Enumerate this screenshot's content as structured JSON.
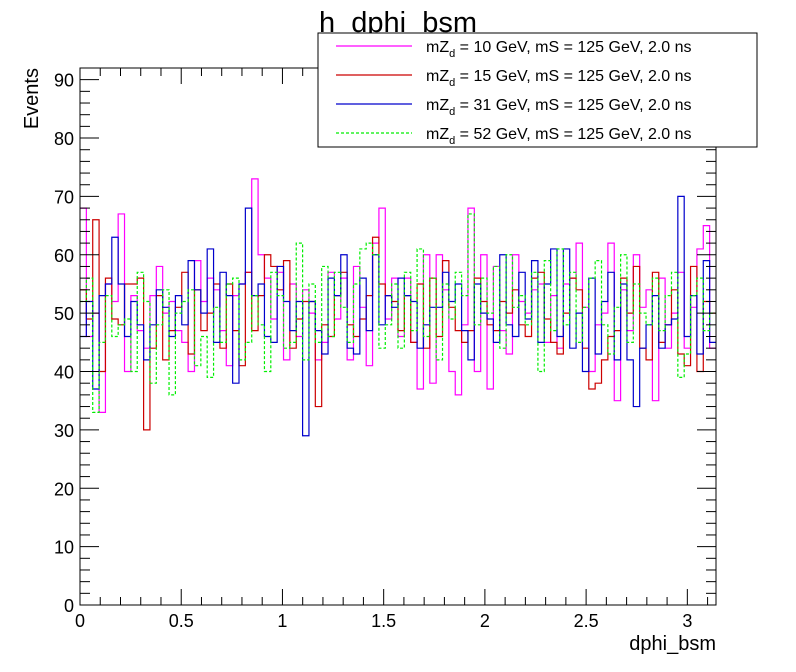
{
  "chart_data": {
    "type": "line",
    "style": "step-histogram",
    "title": "h_dphi_bsm",
    "xlabel": "dphi_bsm",
    "ylabel": "Events",
    "xlim": [
      0,
      3.1416
    ],
    "ylim": [
      0,
      92
    ],
    "x_ticks": [
      "0",
      "0.5",
      "1",
      "1.5",
      "2",
      "2.5",
      "3"
    ],
    "x_tick_values": [
      0,
      0.5,
      1,
      1.5,
      2,
      2.5,
      3
    ],
    "y_ticks": [
      "0",
      "10",
      "20",
      "30",
      "40",
      "50",
      "60",
      "70",
      "80",
      "90"
    ],
    "y_tick_values": [
      0,
      10,
      20,
      30,
      40,
      50,
      60,
      70,
      80,
      90
    ],
    "grid": false,
    "legend_position": "top-right",
    "bins": 100,
    "series": [
      {
        "name": "mZ_d = 10 GeV, mS = 125 GeV, 2.0 ns",
        "legend_prefix": "mZ",
        "legend_sub": "d",
        "legend_rest": " = 10 GeV, mS = 125 GeV, 2.0 ns",
        "color": "#ff00ff",
        "dashed": false,
        "values": [
          68,
          46,
          50,
          33,
          55,
          52,
          67,
          40,
          53,
          47,
          44,
          53,
          58,
          50,
          52,
          47,
          45,
          40,
          59,
          52,
          56,
          54,
          47,
          41,
          53,
          55,
          57,
          73,
          60,
          56,
          49,
          57,
          42,
          55,
          46,
          54,
          50,
          42,
          45,
          57,
          49,
          56,
          42,
          58,
          51,
          41,
          62,
          68,
          49,
          56,
          46,
          56,
          45,
          37,
          60,
          38,
          60,
          54,
          40,
          36,
          48,
          68,
          40,
          60,
          37,
          58,
          47,
          43,
          60,
          52,
          50,
          54,
          55,
          45,
          53,
          44,
          55,
          56,
          62,
          51,
          40,
          48,
          50,
          62,
          35,
          54,
          47,
          60,
          51,
          54,
          35,
          56,
          44,
          50,
          57,
          44,
          51,
          61,
          65,
          44
        ]
      },
      {
        "name": "mZ_d = 15 GeV, mS = 125 GeV, 2.0 ns",
        "legend_prefix": "mZ",
        "legend_sub": "d",
        "legend_rest": " = 15 GeV, mS = 125 GeV, 2.0 ns",
        "color": "#cc0000",
        "dashed": false,
        "values": [
          54,
          49,
          66,
          40,
          56,
          49,
          48,
          55,
          55,
          56,
          30,
          44,
          53,
          42,
          47,
          51,
          57,
          43,
          54,
          47,
          50,
          55,
          44,
          55,
          47,
          41,
          57,
          47,
          53,
          60,
          58,
          54,
          59,
          44,
          49,
          52,
          52,
          34,
          48,
          46,
          53,
          57,
          48,
          46,
          49,
          53,
          63,
          55,
          53,
          52,
          47,
          53,
          45,
          55,
          44,
          56,
          46,
          59,
          51,
          47,
          45,
          47,
          56,
          52,
          48,
          47,
          52,
          50,
          54,
          48,
          46,
          56,
          57,
          49,
          45,
          43,
          50,
          56,
          54,
          44,
          37,
          38,
          42,
          46,
          47,
          56,
          50,
          58,
          44,
          42,
          57,
          45,
          48,
          54,
          43,
          41,
          58,
          40,
          52,
          50
        ]
      },
      {
        "name": "mZ_d = 31 GeV, mS = 125 GeV, 2.0 ns",
        "legend_prefix": "mZ",
        "legend_sub": "d",
        "legend_rest": " = 31 GeV, mS = 125 GeV, 2.0 ns",
        "color": "#0000cc",
        "dashed": false,
        "values": [
          46,
          52,
          37,
          53,
          55,
          63,
          55,
          46,
          52,
          48,
          42,
          48,
          54,
          51,
          46,
          53,
          48,
          59,
          54,
          50,
          61,
          45,
          57,
          53,
          38,
          55,
          68,
          53,
          55,
          46,
          45,
          58,
          52,
          47,
          52,
          29,
          52,
          47,
          43,
          56,
          53,
          60,
          44,
          43,
          56,
          47,
          60,
          48,
          53,
          51,
          56,
          53,
          52,
          44,
          48,
          51,
          51,
          57,
          52,
          55,
          47,
          42,
          55,
          50,
          49,
          45,
          60,
          48,
          46,
          57,
          49,
          59,
          45,
          55,
          61,
          46,
          61,
          44,
          50,
          40,
          56,
          43,
          52,
          57,
          42,
          55,
          42,
          34,
          44,
          48,
          53,
          44,
          48,
          49,
          70,
          46,
          53,
          43,
          59,
          45
        ]
      },
      {
        "name": "mZ_d = 52 GeV, mS = 125 GeV, 2.0 ns",
        "legend_prefix": "mZ",
        "legend_sub": "d",
        "legend_rest": " = 52 GeV, mS = 125 GeV, 2.0 ns",
        "color": "#00ee00",
        "dashed": true,
        "values": [
          52,
          56,
          33,
          45,
          53,
          46,
          48,
          49,
          40,
          57,
          52,
          38,
          48,
          54,
          36,
          50,
          52,
          54,
          41,
          46,
          39,
          51,
          45,
          55,
          56,
          42,
          45,
          53,
          48,
          40,
          57,
          53,
          44,
          45,
          62,
          42,
          55,
          45,
          58,
          46,
          57,
          51,
          45,
          55,
          61,
          62,
          60,
          44,
          48,
          55,
          44,
          57,
          47,
          61,
          46,
          56,
          42,
          55,
          49,
          57,
          53,
          67,
          48,
          56,
          50,
          58,
          44,
          60,
          51,
          53,
          48,
          57,
          40,
          59,
          47,
          61,
          48,
          57,
          45,
          51,
          56,
          59,
          48,
          43,
          51,
          60,
          45,
          55,
          50,
          48,
          56,
          47,
          53,
          57,
          39,
          43,
          53,
          56,
          47,
          50
        ]
      }
    ]
  }
}
